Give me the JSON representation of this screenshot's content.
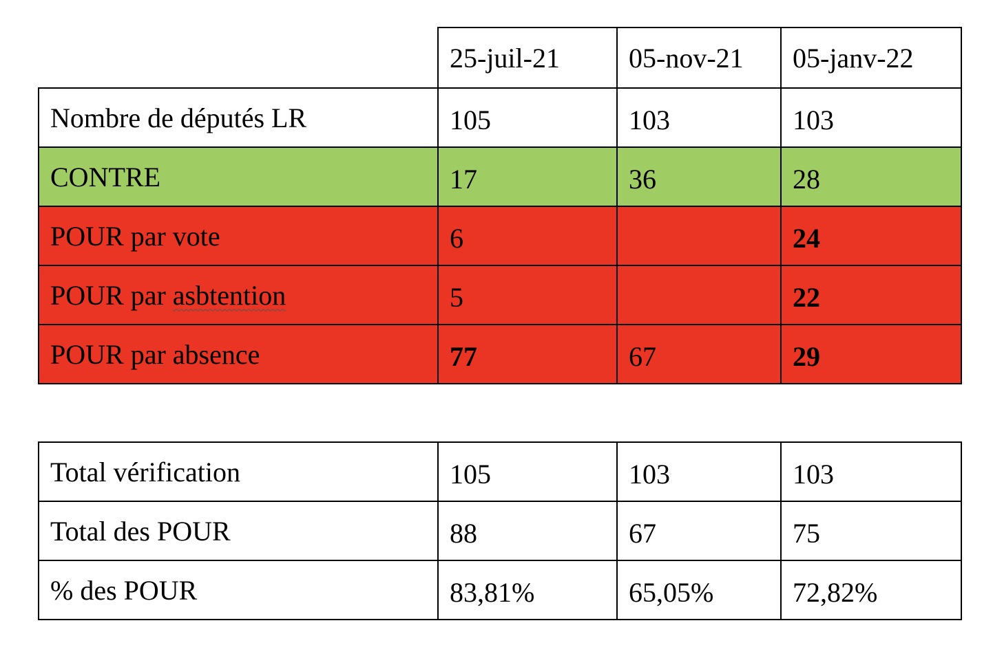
{
  "main_table": {
    "dates": [
      "25-juil-21",
      "05-nov-21",
      "05-janv-22"
    ],
    "rows": [
      {
        "label": "Nombre de députés LR",
        "values": [
          "105",
          "103",
          "103"
        ],
        "bold": [
          false,
          false,
          false
        ]
      },
      {
        "label": "CONTRE",
        "values": [
          "17",
          "36",
          "28"
        ],
        "bold": [
          false,
          false,
          false
        ]
      },
      {
        "label_prefix": "POUR par ",
        "label": "vote",
        "values": [
          "6",
          "",
          "24"
        ],
        "bold": [
          false,
          false,
          true
        ]
      },
      {
        "label_prefix": "POUR par ",
        "label": "asbtention",
        "values": [
          "5",
          "",
          "22"
        ],
        "bold": [
          false,
          false,
          true
        ]
      },
      {
        "label_prefix": "POUR par ",
        "label": "absence",
        "values": [
          "77",
          "67",
          "29"
        ],
        "bold": [
          true,
          false,
          true
        ]
      }
    ]
  },
  "summary_table": {
    "rows": [
      {
        "label": "Total vérification",
        "values": [
          "105",
          "103",
          "103"
        ]
      },
      {
        "label": "Total des POUR",
        "values": [
          "88",
          "67",
          "75"
        ]
      },
      {
        "label": "% des POUR",
        "values": [
          "83,81%",
          "65,05%",
          "72,82%"
        ]
      }
    ]
  },
  "colors": {
    "contre_row": "#9fcc63",
    "pour_rows": "#ea3424",
    "border": "#000000"
  }
}
